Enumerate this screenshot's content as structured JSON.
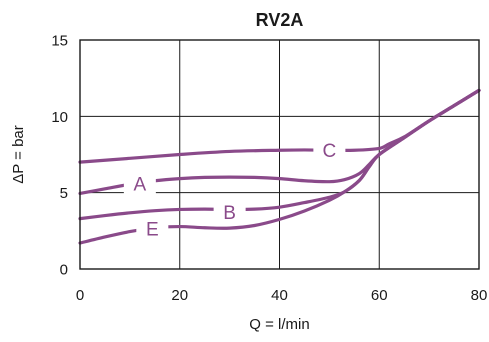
{
  "chart_data": {
    "type": "line",
    "title": "RV2A",
    "xlabel": "Q = l/min",
    "ylabel": "ΔP = bar",
    "xlim": [
      0,
      80
    ],
    "ylim": [
      0,
      15
    ],
    "xticks": [
      0,
      20,
      40,
      60,
      80
    ],
    "yticks": [
      0,
      5,
      10,
      15
    ],
    "grid": true,
    "line_color": "#8a4a8a",
    "series": [
      {
        "name": "A",
        "label_at": [
          12,
          5.6
        ],
        "x": [
          0,
          5,
          10,
          15,
          20,
          25,
          30,
          35,
          40,
          45,
          50,
          53,
          56,
          58,
          60,
          65,
          70,
          75,
          80
        ],
        "y": [
          4.95,
          5.25,
          5.55,
          5.78,
          5.92,
          6.0,
          6.02,
          6.0,
          5.92,
          5.78,
          5.72,
          5.85,
          6.25,
          6.85,
          7.5,
          8.6,
          9.7,
          10.7,
          11.7
        ]
      },
      {
        "name": "B",
        "label_at": [
          30,
          3.75
        ],
        "x": [
          0,
          5,
          10,
          15,
          20,
          25,
          30,
          35,
          40,
          45,
          50,
          53,
          56,
          58,
          60,
          65,
          70,
          75,
          80
        ],
        "y": [
          3.3,
          3.5,
          3.68,
          3.82,
          3.9,
          3.92,
          3.9,
          3.92,
          4.05,
          4.35,
          4.7,
          5.05,
          5.8,
          6.7,
          7.5,
          8.6,
          9.7,
          10.7,
          11.7
        ]
      },
      {
        "name": "C",
        "label_at": [
          50,
          7.8
        ],
        "x": [
          0,
          10,
          20,
          30,
          40,
          45,
          50,
          55,
          60,
          62,
          65,
          70,
          75,
          80
        ],
        "y": [
          7.0,
          7.25,
          7.5,
          7.7,
          7.78,
          7.8,
          7.78,
          7.78,
          7.9,
          8.2,
          8.65,
          9.7,
          10.7,
          11.7
        ]
      },
      {
        "name": "E",
        "label_at": [
          14.5,
          2.65
        ],
        "x": [
          0,
          5,
          10,
          15,
          20,
          25,
          30,
          35,
          40,
          45,
          50,
          53,
          56,
          58,
          60,
          65,
          70,
          75,
          80
        ],
        "y": [
          1.7,
          2.1,
          2.45,
          2.7,
          2.78,
          2.7,
          2.68,
          2.85,
          3.25,
          3.8,
          4.5,
          5.05,
          5.8,
          6.7,
          7.5,
          8.6,
          9.7,
          10.7,
          11.7
        ]
      }
    ]
  }
}
